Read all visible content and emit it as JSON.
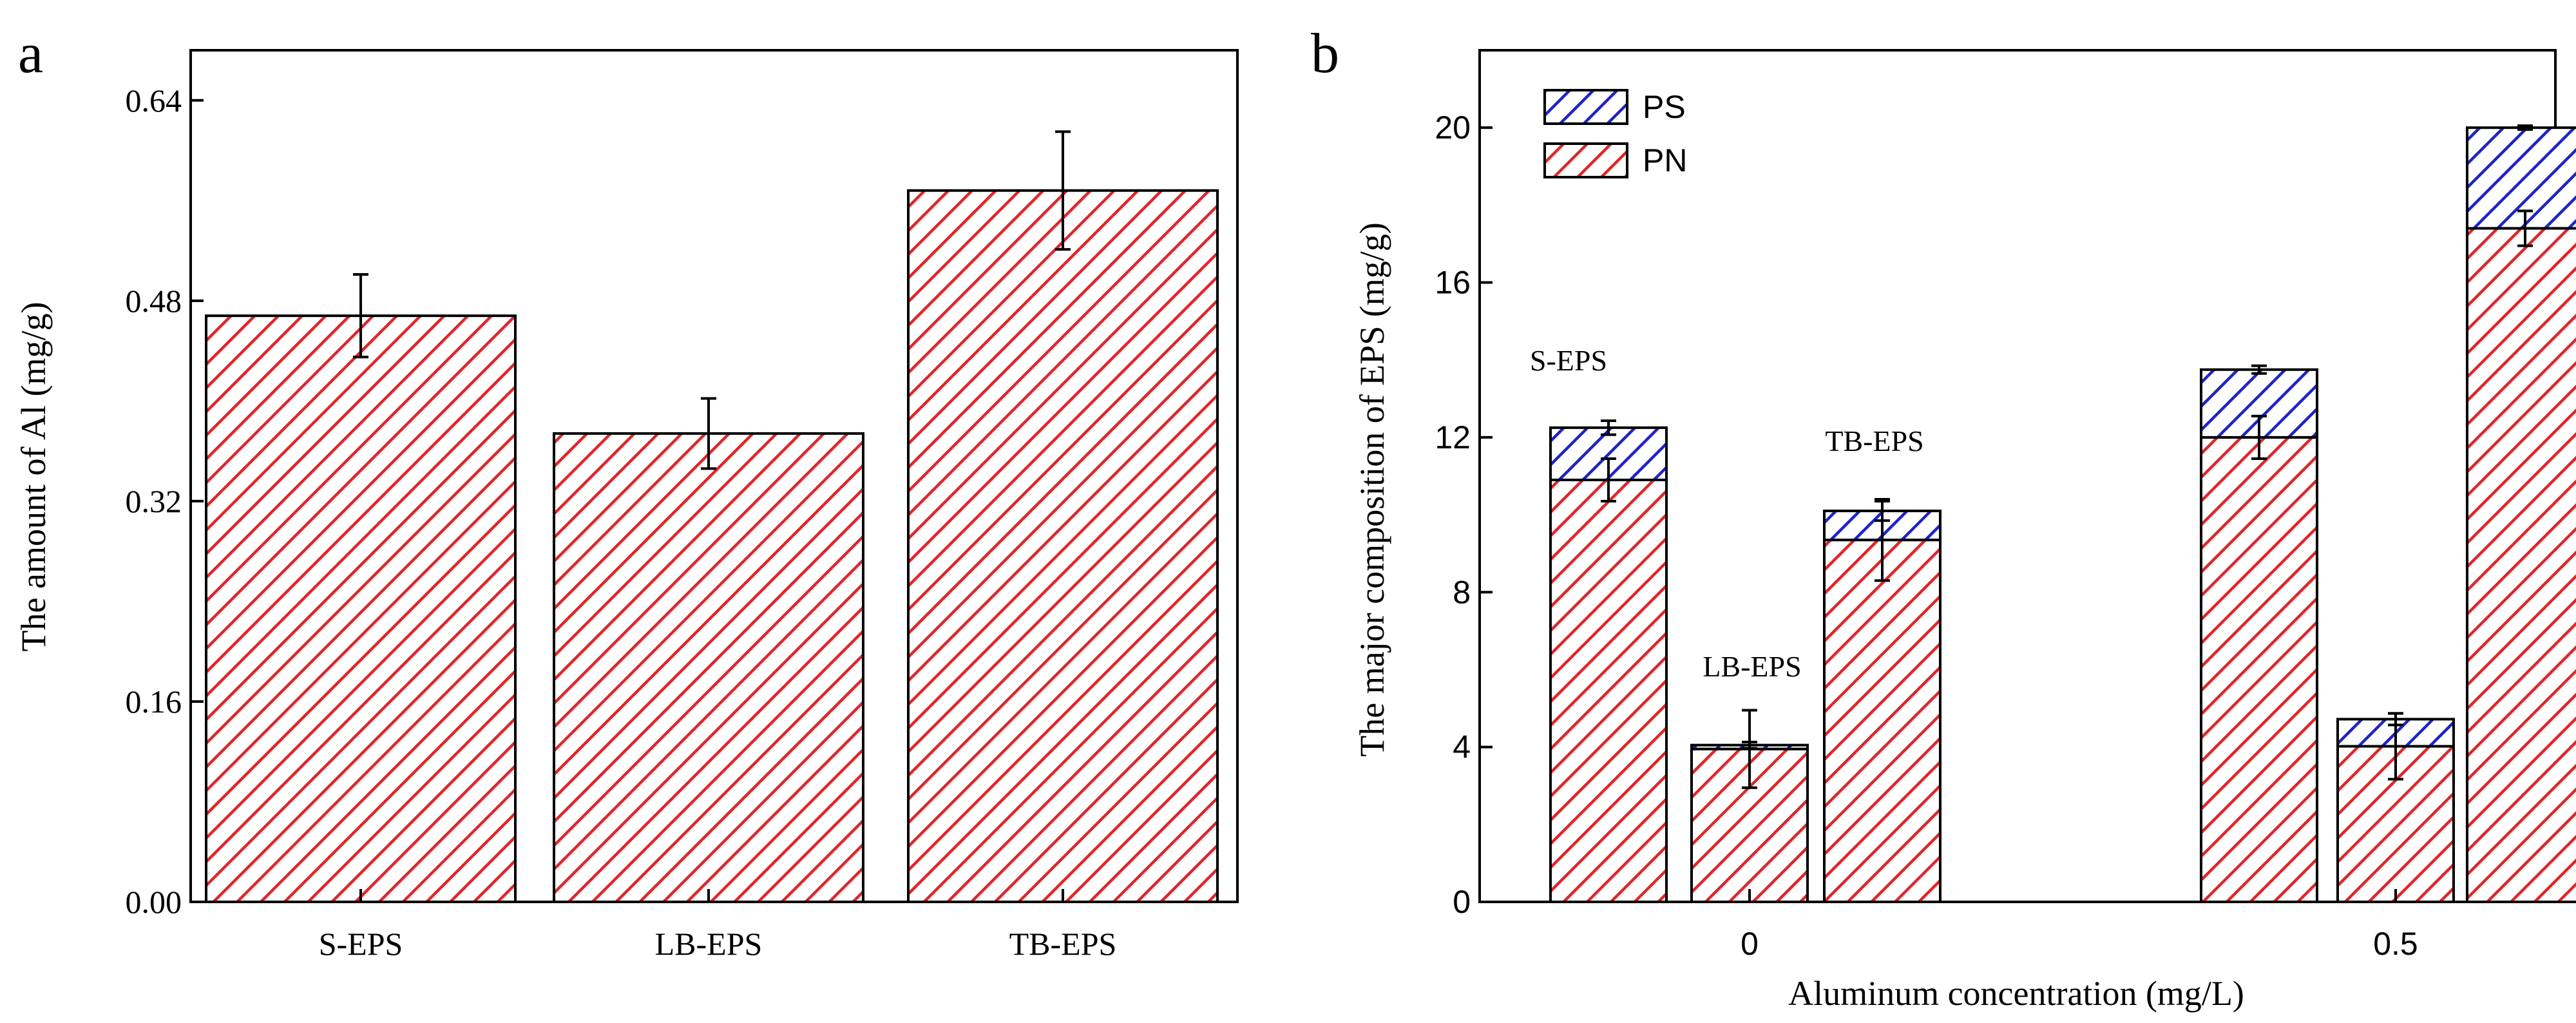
{
  "colors": {
    "pn": "#e0262a",
    "ps": "#1f23c8",
    "axis": "#000000"
  },
  "chart_data": [
    {
      "type": "bar",
      "panel_label": "a",
      "categories": [
        "S-EPS",
        "LB-EPS",
        "TB-EPS"
      ],
      "values": [
        0.468,
        0.374,
        0.568
      ],
      "errors": [
        0.033,
        0.028,
        0.047
      ],
      "ylabel": "The amount of Al (mg/g)",
      "xlabel": "",
      "ylim": [
        0,
        0.68
      ],
      "yticks": [
        0.0,
        0.16,
        0.32,
        0.48,
        0.64
      ],
      "ytick_labels": [
        "0.00",
        "0.16",
        "0.32",
        "0.48",
        "0.64"
      ],
      "hatch": "diagonal",
      "grid": false
    },
    {
      "type": "bar",
      "stacked": true,
      "panel_label": "b",
      "xlabel": "Aluminum concentration (mg/L)",
      "ylabel": "The major composition of EPS (mg/g)",
      "ylim": [
        0,
        22
      ],
      "yticks": [
        0,
        4,
        8,
        12,
        16,
        20
      ],
      "ytick_labels": [
        "0",
        "4",
        "8",
        "12",
        "16",
        "20"
      ],
      "groups": [
        "0",
        "0.5"
      ],
      "bar_labels": [
        "S-EPS",
        "LB-EPS",
        "TB-EPS"
      ],
      "legend": [
        "PS",
        "PN"
      ],
      "legend_position": "top-left",
      "series": [
        {
          "name": "PN",
          "values": [
            [
              10.9,
              3.95,
              9.35
            ],
            [
              12.0,
              4.02,
              17.4
            ]
          ],
          "errors": [
            [
              0.55,
              1.0,
              1.05
            ],
            [
              0.55,
              0.85,
              0.45
            ]
          ]
        },
        {
          "name": "PS",
          "values": [
            [
              1.35,
              0.1,
              0.75
            ],
            [
              1.75,
              0.7,
              2.6
            ]
          ],
          "errors": [
            [
              0.18,
              0.08,
              0.25
            ],
            [
              0.1,
              0.15,
              0.05
            ]
          ]
        }
      ],
      "annotations": [
        "S-EPS",
        "LB-EPS",
        "TB-EPS"
      ],
      "grid": false
    }
  ]
}
